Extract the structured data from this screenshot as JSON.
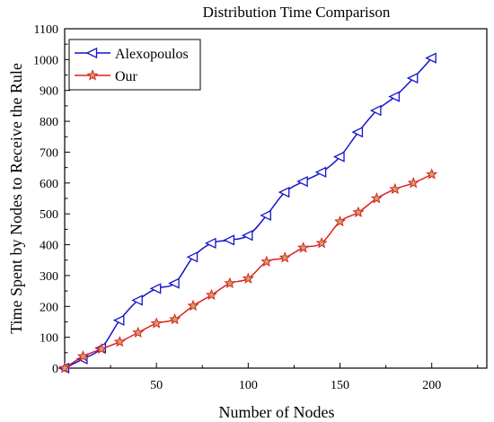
{
  "chart_data": {
    "type": "line",
    "title": "Distribution Time Comparison",
    "xlabel": "Number of Nodes",
    "ylabel": "Time Spent by Nodes to Receive the Rule",
    "xlim": [
      0,
      230
    ],
    "ylim": [
      0,
      1100
    ],
    "x_ticks": [
      50,
      100,
      150,
      200
    ],
    "y_ticks": [
      0,
      100,
      200,
      300,
      400,
      500,
      600,
      700,
      800,
      900,
      1000,
      1100
    ],
    "grid": false,
    "legend_position": "top-left",
    "series": [
      {
        "name": "Alexopoulos",
        "color": "#1414cc",
        "marker": "triangle-left",
        "x": [
          0,
          10,
          20,
          30,
          40,
          50,
          60,
          70,
          80,
          90,
          100,
          110,
          120,
          130,
          140,
          150,
          160,
          170,
          180,
          190,
          200
        ],
        "values": [
          0,
          30,
          65,
          155,
          220,
          258,
          275,
          360,
          405,
          415,
          430,
          495,
          570,
          605,
          635,
          685,
          765,
          835,
          880,
          940,
          1005
        ]
      },
      {
        "name": "Our",
        "color": "#dd1f1f",
        "marker": "star",
        "x": [
          0,
          10,
          20,
          30,
          40,
          50,
          60,
          70,
          80,
          90,
          100,
          110,
          120,
          130,
          140,
          150,
          160,
          170,
          180,
          190,
          200
        ],
        "values": [
          0,
          38,
          62,
          85,
          115,
          145,
          158,
          202,
          237,
          275,
          290,
          345,
          358,
          390,
          405,
          475,
          505,
          550,
          580,
          600,
          628
        ]
      }
    ]
  }
}
